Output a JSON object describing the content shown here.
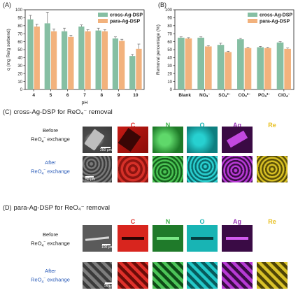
{
  "chart_data": [
    {
      "type": "bar",
      "panel": "(A)",
      "categories": [
        "4",
        "5",
        "6",
        "7",
        "8",
        "9",
        "10"
      ],
      "xlabel": "pH",
      "ylabel": "q (mg Re/g sorbend)",
      "ylim": [
        0,
        100
      ],
      "yticks": [
        0,
        10,
        20,
        30,
        40,
        50,
        60,
        70,
        80,
        90,
        100
      ],
      "series": [
        {
          "name": "cross-Ag-DSP",
          "color": "#86bfa3",
          "values": [
            88,
            83,
            73,
            79,
            74,
            64,
            42
          ],
          "errors": [
            5,
            14,
            4,
            2,
            3,
            2,
            2
          ]
        },
        {
          "name": "para-Ag-DSP",
          "color": "#f2b27d",
          "values": [
            79,
            73,
            66,
            73,
            73,
            61,
            51
          ],
          "errors": [
            3,
            3,
            2,
            2,
            2,
            2,
            6
          ]
        }
      ],
      "legend": "top-right",
      "grid": false
    },
    {
      "type": "bar",
      "panel": "(B)",
      "categories": [
        "Blank",
        "NO3-",
        "SO4 2-",
        "CO3 2-",
        "PO4 3-",
        "ClO4-"
      ],
      "xlabel": "",
      "ylabel": "Removal percentage (%)",
      "ylim": [
        0,
        100
      ],
      "yticks": [
        0,
        10,
        20,
        30,
        40,
        50,
        60,
        70,
        80,
        90,
        100
      ],
      "series": [
        {
          "name": "cross-Ag-DSP",
          "color": "#86bfa3",
          "values": [
            65,
            65,
            56,
            63,
            53,
            59
          ],
          "errors": [
            1,
            1,
            2,
            1,
            1,
            1
          ]
        },
        {
          "name": "para-Ag-DSP",
          "color": "#f2b27d",
          "values": [
            64,
            54,
            47,
            52,
            52,
            51
          ],
          "errors": [
            1,
            1,
            1,
            1,
            1,
            1
          ]
        }
      ],
      "legend": "top-right",
      "grid": false
    }
  ],
  "panel_labels": {
    "a": "(A)",
    "b": "(B)",
    "c": "(C)",
    "d": "(D)"
  },
  "section_c": {
    "title": "cross-Ag-DSP for ReO₄⁻ removal",
    "row1_label": "Before\nReO₄⁻ exchange",
    "row2_label": "After\nReO₄⁻ exchange",
    "scale1": "250 μm",
    "scale2": "50 μm"
  },
  "section_d": {
    "title": "para-Ag-DSP for ReO₄⁻ removal",
    "row1_label": "Before\nReO₄⁻ exchange",
    "row2_label": "After\nReO₄⁻ exchange",
    "scale1": "100 μm",
    "scale2": "50 μm"
  },
  "elements": [
    {
      "symbol": "C",
      "color": "#e0302a"
    },
    {
      "symbol": "N",
      "color": "#3fb64a"
    },
    {
      "symbol": "O",
      "color": "#1ab5b5"
    },
    {
      "symbol": "Ag",
      "color": "#9b35b8"
    },
    {
      "symbol": "Re",
      "color": "#e8c020"
    }
  ]
}
